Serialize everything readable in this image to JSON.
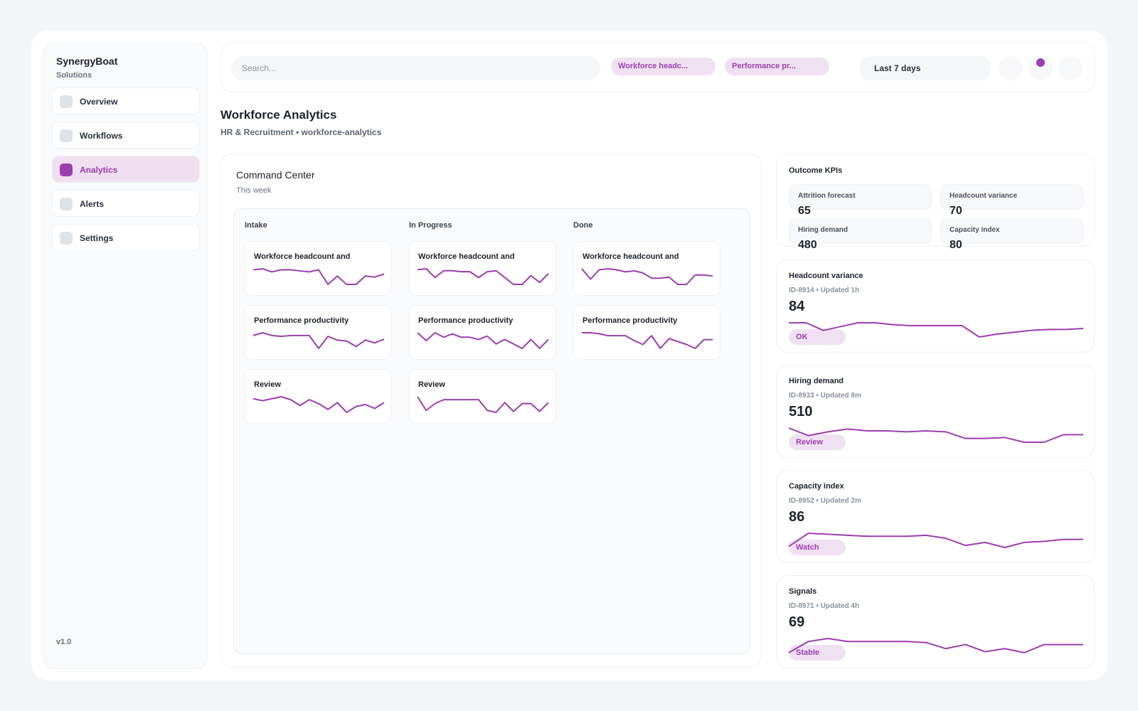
{
  "sidebar": {
    "brand": "SynergyBoat",
    "subtitle": "Solutions",
    "nav": [
      "Overview",
      "Workflows",
      "Analytics",
      "Alerts",
      "Settings"
    ],
    "active": 2,
    "version": "v1.0"
  },
  "topbar": {
    "search_placeholder": "Search...",
    "filters": [
      "Workforce headc...",
      "Performance pr..."
    ],
    "date_range": "Last 7 days"
  },
  "header": {
    "title": "Workforce Analytics",
    "breadcrumb": "HR & Recruitment • workforce-analytics"
  },
  "board": {
    "title": "Command Center",
    "subtitle": "This week",
    "columns": [
      {
        "name": "Intake",
        "cards": [
          {
            "title": "Workforce headcount and",
            "trend": [
              22,
              23,
              20,
              22,
              22,
              21,
              20,
              22,
              8,
              16,
              8,
              8,
              16,
              15,
              18
            ]
          },
          {
            "title": "Performance productivity",
            "trend": [
              34,
              37,
              34,
              33,
              34,
              34,
              34,
              20,
              33,
              29,
              28,
              22,
              29,
              26,
              30
            ]
          },
          {
            "title": "Review",
            "trend": [
              47,
              45,
              47,
              49,
              46,
              40,
              46,
              42,
              36,
              43,
              33,
              39,
              41,
              37,
              43
            ]
          }
        ]
      },
      {
        "name": "In Progress",
        "cards": [
          {
            "title": "Workforce headcount and",
            "trend": [
              23,
              24,
              15,
              22,
              22,
              21,
              21,
              15,
              21,
              22,
              15,
              8,
              8,
              17,
              10,
              19
            ]
          },
          {
            "title": "Performance productivity",
            "trend": [
              36,
              29,
              36,
              32,
              35,
              32,
              32,
              30,
              33,
              26,
              30,
              26,
              22,
              30,
              22,
              30
            ]
          },
          {
            "title": "Review",
            "trend": [
              48,
              34,
              41,
              45,
              45,
              45,
              45,
              45,
              34,
              32,
              42,
              33,
              41,
              41,
              33,
              42
            ]
          }
        ]
      },
      {
        "name": "Done",
        "cards": [
          {
            "title": "Workforce headcount and",
            "trend": [
              23,
              13,
              22,
              23,
              22,
              20,
              21,
              19,
              14,
              14,
              15,
              8,
              8,
              17,
              17,
              16
            ]
          },
          {
            "title": "Performance productivity",
            "trend": [
              36,
              36,
              35,
              33,
              33,
              33,
              28,
              24,
              33,
              20,
              30,
              27,
              24,
              20,
              29,
              29
            ]
          }
        ]
      }
    ]
  },
  "kpis": {
    "title": "Outcome KPIs",
    "items": [
      {
        "label": "Attrition forecast",
        "value": 65
      },
      {
        "label": "Headcount variance",
        "value": 70
      },
      {
        "label": "Hiring demand",
        "value": 480
      },
      {
        "label": "Capacity index",
        "value": 80
      }
    ]
  },
  "metrics": [
    {
      "title": "Headcount variance",
      "meta": "ID-8914 • Updated 1h",
      "value": 84,
      "status": "OK",
      "trend": [
        24,
        24,
        16,
        20,
        24,
        24,
        22,
        21,
        21,
        21,
        21,
        9,
        12,
        14,
        16,
        17,
        17,
        18
      ]
    },
    {
      "title": "Hiring demand",
      "meta": "ID-8933 • Updated 8m",
      "value": 510,
      "status": "Review",
      "trend": [
        20,
        12,
        16,
        19,
        17,
        17,
        16,
        17,
        16,
        9,
        9,
        10,
        5,
        5,
        13,
        13
      ]
    },
    {
      "title": "Capacity index",
      "meta": "ID-8952 • Updated 2m",
      "value": 86,
      "status": "Watch",
      "trend": [
        10,
        23,
        22,
        21,
        20,
        20,
        20,
        21,
        18,
        11,
        14,
        9,
        14,
        15,
        17,
        17
      ]
    },
    {
      "title": "Signals",
      "meta": "ID-8971 • Updated 4h",
      "value": 69,
      "status": "Stable",
      "trend": [
        5,
        16,
        19,
        16,
        16,
        16,
        16,
        15,
        9,
        13,
        6,
        9,
        5,
        13,
        13,
        13
      ]
    }
  ]
}
